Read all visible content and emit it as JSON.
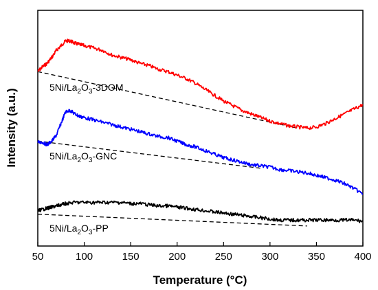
{
  "chart_data": {
    "type": "line",
    "title": "",
    "xlabel": "Temperature (°C)",
    "ylabel": "Intensity (a.u.)",
    "xlim": [
      50,
      400
    ],
    "x_ticks": [
      50,
      100,
      150,
      200,
      250,
      300,
      350,
      400
    ],
    "y_ticks": [],
    "grid": false,
    "legend": "none",
    "series": [
      {
        "name": "5Ni/La2O3-3DOM",
        "label_parts": {
          "prefix": "5Ni/La",
          "sub1": "2",
          "mid": "O",
          "sub2": "3",
          "suffix": "-3DOM"
        },
        "color": "#ff0000",
        "x": [
          50,
          55,
          60,
          65,
          70,
          75,
          80,
          85,
          90,
          95,
          100,
          110,
          120,
          130,
          140,
          150,
          160,
          170,
          180,
          190,
          200,
          210,
          220,
          230,
          240,
          250,
          260,
          270,
          280,
          290,
          300,
          310,
          320,
          330,
          340,
          350,
          360,
          370,
          380,
          390,
          400
        ],
        "y": [
          0.74,
          0.76,
          0.775,
          0.8,
          0.83,
          0.85,
          0.87,
          0.87,
          0.86,
          0.855,
          0.85,
          0.84,
          0.83,
          0.81,
          0.8,
          0.79,
          0.775,
          0.765,
          0.75,
          0.74,
          0.725,
          0.71,
          0.69,
          0.665,
          0.64,
          0.615,
          0.595,
          0.575,
          0.56,
          0.545,
          0.53,
          0.52,
          0.51,
          0.505,
          0.5,
          0.505,
          0.52,
          0.54,
          0.56,
          0.58,
          0.6
        ],
        "baseline": {
          "x": [
            50,
            330
          ],
          "y": [
            0.74,
            0.5
          ]
        }
      },
      {
        "name": "5Ni/La2O3-GNC",
        "label_parts": {
          "prefix": "5Ni/La",
          "sub1": "2",
          "mid": "O",
          "sub2": "3",
          "suffix": "-GNC"
        },
        "color": "#0000ff",
        "x": [
          50,
          55,
          60,
          65,
          70,
          75,
          80,
          85,
          90,
          95,
          100,
          110,
          120,
          130,
          140,
          150,
          160,
          170,
          180,
          190,
          200,
          210,
          220,
          230,
          240,
          250,
          260,
          270,
          280,
          290,
          300,
          310,
          320,
          330,
          340,
          350,
          360,
          370,
          380,
          390,
          400
        ],
        "y": [
          0.44,
          0.44,
          0.43,
          0.445,
          0.47,
          0.52,
          0.57,
          0.575,
          0.56,
          0.55,
          0.545,
          0.535,
          0.525,
          0.515,
          0.505,
          0.495,
          0.485,
          0.475,
          0.465,
          0.46,
          0.445,
          0.43,
          0.42,
          0.405,
          0.39,
          0.375,
          0.365,
          0.355,
          0.345,
          0.34,
          0.335,
          0.325,
          0.32,
          0.315,
          0.31,
          0.3,
          0.29,
          0.28,
          0.265,
          0.245,
          0.22
        ],
        "baseline": {
          "x": [
            50,
            290
          ],
          "y": [
            0.445,
            0.33
          ]
        }
      },
      {
        "name": "5Ni/La2O3-PP",
        "label_parts": {
          "prefix": "5Ni/La",
          "sub1": "2",
          "mid": "O",
          "sub2": "3",
          "suffix": "-PP"
        },
        "color": "#000000",
        "x": [
          50,
          55,
          60,
          65,
          70,
          75,
          80,
          90,
          100,
          110,
          120,
          130,
          140,
          150,
          160,
          170,
          180,
          190,
          200,
          210,
          220,
          230,
          240,
          250,
          260,
          270,
          280,
          290,
          300,
          310,
          320,
          330,
          340,
          350,
          360,
          370,
          380,
          390,
          400
        ],
        "y": [
          0.15,
          0.155,
          0.16,
          0.165,
          0.17,
          0.175,
          0.18,
          0.185,
          0.185,
          0.185,
          0.185,
          0.185,
          0.185,
          0.18,
          0.18,
          0.175,
          0.17,
          0.17,
          0.165,
          0.16,
          0.155,
          0.15,
          0.145,
          0.14,
          0.135,
          0.13,
          0.125,
          0.12,
          0.115,
          0.11,
          0.11,
          0.11,
          0.11,
          0.11,
          0.11,
          0.11,
          0.11,
          0.11,
          0.105
        ],
        "baseline": {
          "x": [
            50,
            340
          ],
          "y": [
            0.135,
            0.085
          ]
        }
      }
    ]
  }
}
